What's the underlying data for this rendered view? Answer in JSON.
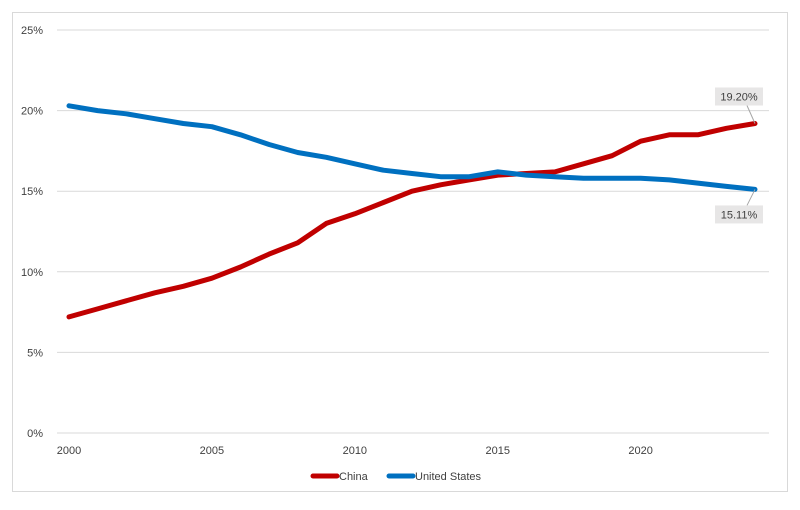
{
  "chart_data": {
    "type": "line",
    "title": "",
    "xlabel": "",
    "ylabel": "",
    "xlim": [
      2000,
      2024
    ],
    "ylim": [
      0,
      25
    ],
    "y_ticks": [
      "0%",
      "5%",
      "10%",
      "15%",
      "20%",
      "25%"
    ],
    "x_ticks": [
      "2000",
      "2005",
      "2010",
      "2015",
      "2020"
    ],
    "grid": "horizontal",
    "legend_position": "bottom",
    "colors": {
      "China": "#c00000",
      "United States": "#0070c0"
    },
    "x": [
      2000,
      2001,
      2002,
      2003,
      2004,
      2005,
      2006,
      2007,
      2008,
      2009,
      2010,
      2011,
      2012,
      2013,
      2014,
      2015,
      2016,
      2017,
      2018,
      2019,
      2020,
      2021,
      2022,
      2023,
      2024
    ],
    "series": [
      {
        "name": "China",
        "color": "#c00000",
        "values": [
          7.2,
          7.7,
          8.2,
          8.7,
          9.1,
          9.6,
          10.3,
          11.1,
          11.8,
          13.0,
          13.6,
          14.3,
          15.0,
          15.4,
          15.7,
          16.0,
          16.1,
          16.2,
          16.7,
          17.2,
          18.1,
          18.5,
          18.5,
          18.9,
          19.2
        ]
      },
      {
        "name": "United States",
        "color": "#0070c0",
        "values": [
          20.3,
          20.0,
          19.8,
          19.5,
          19.2,
          19.0,
          18.5,
          17.9,
          17.4,
          17.1,
          16.7,
          16.3,
          16.1,
          15.9,
          15.9,
          16.2,
          16.0,
          15.9,
          15.8,
          15.8,
          15.8,
          15.7,
          15.5,
          15.3,
          15.11
        ]
      }
    ],
    "annotations": [
      {
        "series": "China",
        "x": 2024,
        "label": "19.20%"
      },
      {
        "series": "United States",
        "x": 2024,
        "label": "15.11%"
      }
    ]
  }
}
